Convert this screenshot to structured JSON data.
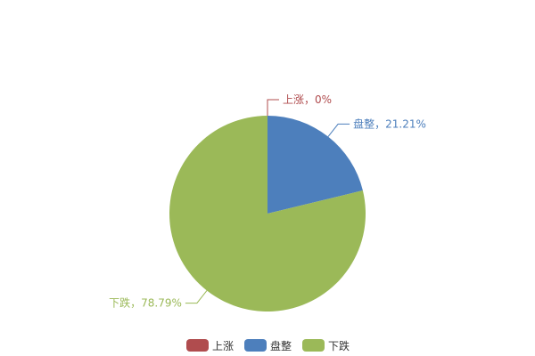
{
  "chart_data": {
    "type": "pie",
    "title": "",
    "slices": [
      {
        "name": "上涨",
        "value": 0,
        "label": "上涨，0%",
        "color": "#b04c4e"
      },
      {
        "name": "盘整",
        "value": 21.21,
        "label": "盘整，21.21%",
        "color": "#4d7fbc"
      },
      {
        "name": "下跌",
        "value": 78.79,
        "label": "下跌，78.79%",
        "color": "#9bb958"
      }
    ],
    "start_angle": "top",
    "direction": "clockwise",
    "legend": {
      "placement": "bottom",
      "items": [
        "上涨",
        "盘整",
        "下跌"
      ]
    }
  }
}
